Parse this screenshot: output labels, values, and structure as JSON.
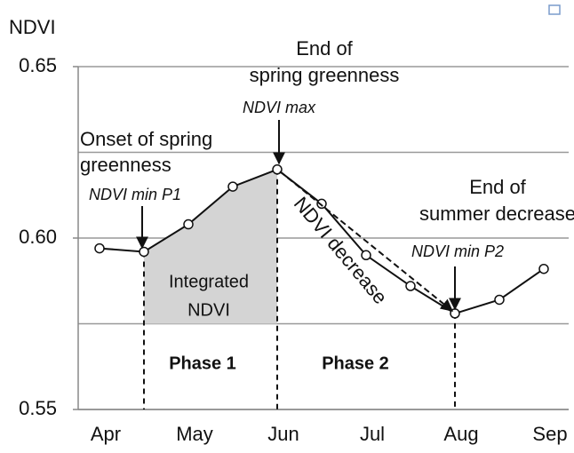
{
  "chart_data": {
    "type": "line",
    "y_label": "NDVI",
    "categories": [
      "Apr",
      null,
      "May",
      null,
      "Jun",
      null,
      "Jul",
      null,
      "Aug",
      null,
      "Sep"
    ],
    "values": [
      0.597,
      0.596,
      0.604,
      0.615,
      0.62,
      0.61,
      0.595,
      0.586,
      0.578,
      0.582,
      0.591
    ],
    "color": "#111111",
    "area_color": "#d4d4d4",
    "ylim": [
      0.55,
      0.65
    ],
    "yticks": [
      0.55,
      {
        "value": 0.6,
        "label": "0.60"
      },
      0.65
    ],
    "ygrid": [
      0.55,
      0.575,
      0.6,
      0.625,
      0.65
    ],
    "annotations": [
      [
        "End of",
        "spring greenness"
      ],
      [
        "NDVI max"
      ],
      [
        "Onset of spring",
        "greenness"
      ],
      [
        "NDVI min P1"
      ],
      [
        "End of",
        "summer decrease"
      ],
      [
        "NDVI min P2"
      ],
      [
        "NDVI decrease"
      ],
      [
        "Integrated",
        "NDVI"
      ],
      [
        "Phase 1"
      ],
      [
        "Phase 2"
      ]
    ]
  }
}
